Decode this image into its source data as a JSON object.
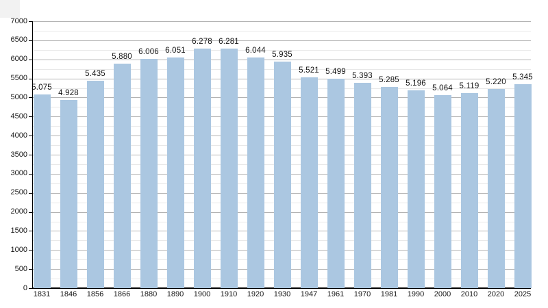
{
  "chart": {
    "background_color": "#ffffff",
    "bar_color": "#abc7e1",
    "major_grid_color": "#b3b3b3",
    "minor_grid_color": "#e8e8e8",
    "axis_color": "#000000",
    "text_color": "#141414",
    "corner_artifact_color": "#f2f2f2"
  },
  "chart_data": {
    "type": "bar",
    "title": "",
    "xlabel": "",
    "ylabel": "",
    "categories": [
      "1831",
      "1846",
      "1856",
      "1866",
      "1880",
      "1890",
      "1900",
      "1910",
      "1920",
      "1930",
      "1947",
      "1961",
      "1970",
      "1981",
      "1990",
      "2000",
      "2010",
      "2020",
      "2025"
    ],
    "values": [
      5075,
      4928,
      5435,
      5880,
      6006,
      6051,
      6278,
      6281,
      6044,
      5935,
      5521,
      5499,
      5393,
      5285,
      5196,
      5064,
      5119,
      5220,
      5345
    ],
    "value_labels": [
      "5.075",
      "4.928",
      "5.435",
      "5.880",
      "6.006",
      "6.051",
      "6.278",
      "6.281",
      "6.044",
      "5.935",
      "5.521",
      "5.499",
      "5.393",
      "5.285",
      "5.196",
      "5.064",
      "5.119",
      "5.220",
      "5.345"
    ],
    "ylim": [
      0,
      7000
    ],
    "y_major_step": 500,
    "y_minor_step": 250,
    "y_tick_labels": [
      "0",
      "500",
      "1000",
      "1500",
      "2000",
      "2500",
      "3000",
      "3500",
      "4000",
      "4500",
      "5000",
      "5500",
      "6000",
      "6500",
      "7000"
    ],
    "grid": true,
    "legend_position": "none"
  }
}
